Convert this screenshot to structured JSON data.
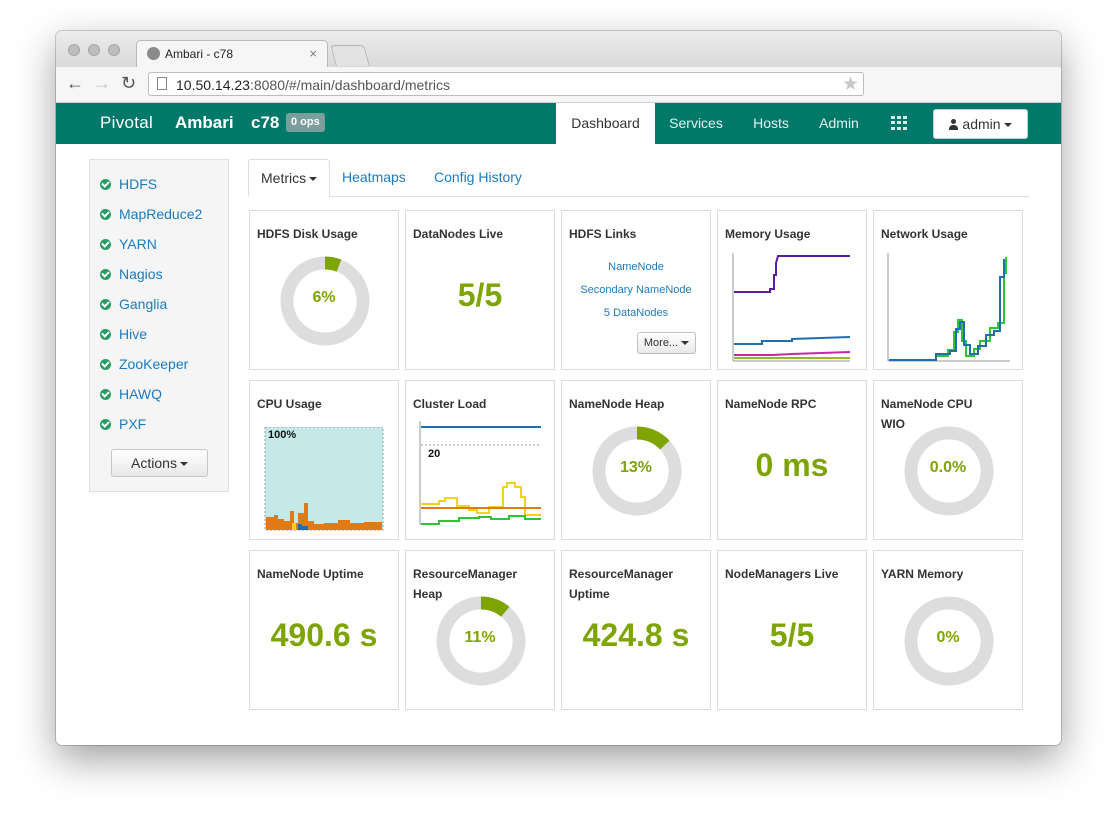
{
  "browser": {
    "tab_title": "Ambari - c78",
    "tab_close": "×",
    "url_host": "10.50.14.23",
    "url_rest": ":8080/#/main/dashboard/metrics",
    "back_icon": "←",
    "forward_icon": "→",
    "reload_icon": "↻",
    "star_icon": "★"
  },
  "header": {
    "brand_left": "Pivotal",
    "brand_right": "Ambari",
    "cluster": "c78",
    "ops_badge": "0 ops",
    "nav": [
      "Dashboard",
      "Services",
      "Hosts",
      "Admin"
    ],
    "active_nav": "Dashboard",
    "user": "admin",
    "accent_color": "#00796b"
  },
  "sidebar": {
    "services": [
      "HDFS",
      "MapReduce2",
      "YARN",
      "Nagios",
      "Ganglia",
      "Hive",
      "ZooKeeper",
      "HAWQ",
      "PXF"
    ],
    "status_icon": "check-circle-icon",
    "status_color": "#2a9d66",
    "actions_label": "Actions"
  },
  "tabs": {
    "metrics": "Metrics",
    "heatmaps": "Heatmaps",
    "config_history": "Config History"
  },
  "widgets": {
    "hdfs_disk": {
      "title": "HDFS Disk Usage",
      "value": "6%",
      "fraction": 0.06
    },
    "datanodes": {
      "title": "DataNodes Live",
      "value": "5/5"
    },
    "hdfs_links": {
      "title": "HDFS Links",
      "links": [
        "NameNode",
        "Secondary NameNode",
        "5 DataNodes"
      ],
      "more": "More..."
    },
    "memory": {
      "title": "Memory Usage"
    },
    "network": {
      "title": "Network Usage"
    },
    "cpu": {
      "title": "CPU Usage",
      "label": "100%"
    },
    "cluster_load": {
      "title": "Cluster Load",
      "label": "20"
    },
    "nn_heap": {
      "title": "NameNode Heap",
      "value": "13%",
      "fraction": 0.13
    },
    "nn_rpc": {
      "title": "NameNode RPC",
      "value": "0 ms"
    },
    "nn_cpu": {
      "title": "NameNode CPU WIO",
      "value": "0.0%",
      "fraction": 0.0
    },
    "nn_uptime": {
      "title": "NameNode Uptime",
      "value": "490.6 s"
    },
    "rm_heap": {
      "title": "ResourceManager Heap",
      "value": "11%",
      "fraction": 0.11
    },
    "rm_uptime": {
      "title": "ResourceManager Uptime",
      "value": "424.8 s"
    },
    "nm_live": {
      "title": "NodeManagers Live",
      "value": "5/5"
    },
    "yarn_memory": {
      "title": "YARN Memory",
      "value": "0%",
      "fraction": 0.0
    }
  },
  "colors": {
    "value_green": "#7ea400",
    "donut_track": "#dddddd",
    "link_blue": "#1b7bbd"
  }
}
